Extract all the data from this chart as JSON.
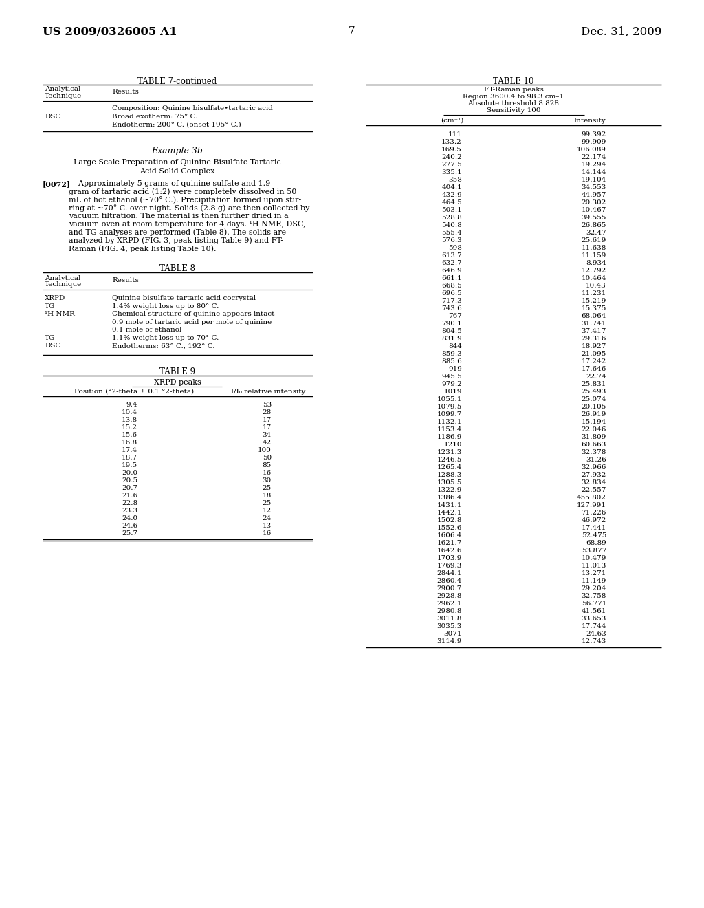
{
  "page_number": "7",
  "header_left": "US 2009/0326005 A1",
  "header_right": "Dec. 31, 2009",
  "table7_continued_title": "TABLE 7-continued",
  "table8_title": "TABLE 8",
  "table9_title": "TABLE 9",
  "table9_subtitle": "XRPD peaks",
  "table10_title": "TABLE 10",
  "table10_header_line1": "FT-Raman peaks",
  "table10_header_line2": "Region 3600.4 to 98.3 cm–1",
  "table10_header_line3": "Absolute threshold 8.828",
  "table10_header_line4": "Sensitivity 100",
  "table10_col1_header": "(cm⁻¹)",
  "table10_col2_header": "Intensity",
  "table10_rows": [
    [
      "111",
      "99.392"
    ],
    [
      "133.2",
      "99.909"
    ],
    [
      "169.5",
      "106.089"
    ],
    [
      "240.2",
      "22.174"
    ],
    [
      "277.5",
      "19.294"
    ],
    [
      "335.1",
      "14.144"
    ],
    [
      "358",
      "19.104"
    ],
    [
      "404.1",
      "34.553"
    ],
    [
      "432.9",
      "44.957"
    ],
    [
      "464.5",
      "20.302"
    ],
    [
      "503.1",
      "10.467"
    ],
    [
      "528.8",
      "39.555"
    ],
    [
      "540.8",
      "26.865"
    ],
    [
      "555.4",
      "32.47"
    ],
    [
      "576.3",
      "25.619"
    ],
    [
      "598",
      "11.638"
    ],
    [
      "613.7",
      "11.159"
    ],
    [
      "632.7",
      "8.934"
    ],
    [
      "646.9",
      "12.792"
    ],
    [
      "661.1",
      "10.464"
    ],
    [
      "668.5",
      "10.43"
    ],
    [
      "696.5",
      "11.231"
    ],
    [
      "717.3",
      "15.219"
    ],
    [
      "743.6",
      "15.375"
    ],
    [
      "767",
      "68.064"
    ],
    [
      "790.1",
      "31.741"
    ],
    [
      "804.5",
      "37.417"
    ],
    [
      "831.9",
      "29.316"
    ],
    [
      "844",
      "18.927"
    ],
    [
      "859.3",
      "21.095"
    ],
    [
      "885.6",
      "17.242"
    ],
    [
      "919",
      "17.646"
    ],
    [
      "945.5",
      "22.74"
    ],
    [
      "979.2",
      "25.831"
    ],
    [
      "1019",
      "25.493"
    ],
    [
      "1055.1",
      "25.074"
    ],
    [
      "1079.5",
      "20.105"
    ],
    [
      "1099.7",
      "26.919"
    ],
    [
      "1132.1",
      "15.194"
    ],
    [
      "1153.4",
      "22.046"
    ],
    [
      "1186.9",
      "31.809"
    ],
    [
      "1210",
      "60.663"
    ],
    [
      "1231.3",
      "32.378"
    ],
    [
      "1246.5",
      "31.26"
    ],
    [
      "1265.4",
      "32.966"
    ],
    [
      "1288.3",
      "27.932"
    ],
    [
      "1305.5",
      "32.834"
    ],
    [
      "1322.9",
      "22.557"
    ],
    [
      "1386.4",
      "455.802"
    ],
    [
      "1431.1",
      "127.991"
    ],
    [
      "1442.1",
      "71.226"
    ],
    [
      "1502.8",
      "46.972"
    ],
    [
      "1552.6",
      "17.441"
    ],
    [
      "1606.4",
      "52.475"
    ],
    [
      "1621.7",
      "68.89"
    ],
    [
      "1642.6",
      "53.877"
    ],
    [
      "1703.9",
      "10.479"
    ],
    [
      "1769.3",
      "11.013"
    ],
    [
      "2844.1",
      "13.271"
    ],
    [
      "2860.4",
      "11.149"
    ],
    [
      "2900.7",
      "29.204"
    ],
    [
      "2928.8",
      "32.758"
    ],
    [
      "2962.1",
      "56.771"
    ],
    [
      "2980.8",
      "41.561"
    ],
    [
      "3011.8",
      "33.653"
    ],
    [
      "3035.3",
      "17.744"
    ],
    [
      "3071",
      "24.63"
    ],
    [
      "3114.9",
      "12.743"
    ]
  ],
  "table9_rows": [
    [
      "9.4",
      "53"
    ],
    [
      "10.4",
      "28"
    ],
    [
      "13.8",
      "17"
    ],
    [
      "15.2",
      "17"
    ],
    [
      "15.6",
      "34"
    ],
    [
      "16.8",
      "42"
    ],
    [
      "17.4",
      "100"
    ],
    [
      "18.7",
      "50"
    ],
    [
      "19.5",
      "85"
    ],
    [
      "20.0",
      "16"
    ],
    [
      "20.5",
      "30"
    ],
    [
      "20.7",
      "25"
    ],
    [
      "21.6",
      "18"
    ],
    [
      "22.8",
      "25"
    ],
    [
      "23.3",
      "12"
    ],
    [
      "24.0",
      "24"
    ],
    [
      "24.6",
      "13"
    ],
    [
      "25.7",
      "16"
    ]
  ]
}
